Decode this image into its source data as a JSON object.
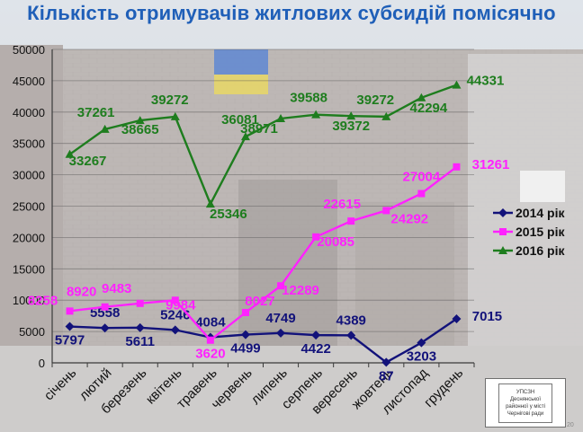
{
  "page": {
    "title": "Кількість отримувачів житлових субсидій помісячно",
    "logo_text": "УПСЗН Деснянської районної у місті Чернігові ради",
    "page_number": "20"
  },
  "colors": {
    "s2014": "#12127a",
    "s2015": "#ff22ff",
    "s2016": "#1e7d1e",
    "axis": "#3a3a3a",
    "title": "#1f5fb8"
  },
  "chart_data": {
    "type": "line",
    "title": "Кількість отримувачів житлових субсидій помісячно",
    "xlabel": "",
    "ylabel": "",
    "ylim": [
      0,
      50000
    ],
    "yticks": [
      0,
      5000,
      10000,
      15000,
      20000,
      25000,
      30000,
      35000,
      40000,
      45000,
      50000
    ],
    "grid": true,
    "legend_position": "right",
    "categories": [
      "січень",
      "лютий",
      "березень",
      "квітень",
      "травень",
      "червень",
      "липень",
      "серпень",
      "вересень",
      "жовтень",
      "листопад",
      "грудень"
    ],
    "series": [
      {
        "name": "2014 рік",
        "color": "#12127a",
        "marker": "diamond",
        "values": [
          5797,
          5558,
          5611,
          5246,
          4084,
          4499,
          4749,
          4422,
          4389,
          87,
          3203,
          7015
        ]
      },
      {
        "name": "2015 рік",
        "color": "#ff22ff",
        "marker": "square",
        "values": [
          8258,
          8920,
          9483,
          9984,
          3620,
          8027,
          12289,
          20085,
          22615,
          24292,
          27004,
          31261
        ]
      },
      {
        "name": "2016 рік",
        "color": "#1e7d1e",
        "marker": "triangle",
        "values": [
          33267,
          37261,
          38665,
          39272,
          25346,
          36081,
          38971,
          39588,
          39372,
          39272,
          42294,
          44331
        ]
      }
    ],
    "value_labels": {
      "2014 рік": [
        "5797",
        "5558",
        "5611",
        "5246",
        "4084",
        "4499",
        "4749",
        "4422",
        "4389",
        "87",
        "3203",
        "7015"
      ],
      "2015 рік": [
        "8258",
        "8920",
        "9483",
        "9984",
        "3620",
        "8027",
        "12289",
        "20085",
        "22615",
        "24292",
        "27004",
        "31261"
      ],
      "2016 рік": [
        "33267",
        "37261",
        "38665",
        "39272",
        "25346",
        "36081",
        "38971",
        "39588",
        "39372",
        "39272",
        "42294",
        "44331"
      ]
    }
  }
}
